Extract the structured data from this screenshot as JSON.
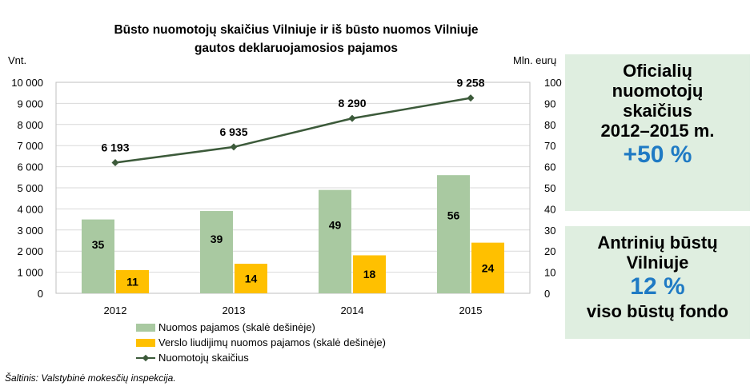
{
  "title_line1": "Būsto nuomotojų skaičius Vilniuje ir iš būsto nuomos Vilniuje",
  "title_line2": "gautos deklaruojamosios pajamos",
  "left_unit": "Vnt.",
  "right_unit": "Mln. eurų",
  "source": "Šaltinis: Valstybinė mokesčių inspekcija.",
  "colors": {
    "green_bar": "#a9c9a1",
    "yellow_bar": "#ffc000",
    "line": "#3c5a3a",
    "info_bg": "#dfeee0",
    "accent_blue": "#1f7ac4"
  },
  "box1": {
    "line1": "Oficialių",
    "line2": "nuomotojų",
    "line3": "skaičius",
    "line4": "2012–2015 m.",
    "big": "+50 %"
  },
  "box2": {
    "line1": "Antrinių būstų",
    "line2": "Vilniuje",
    "big": "12 %",
    "line3": "viso būstų fondo"
  },
  "chart_data": {
    "type": "bar",
    "categories": [
      "2012",
      "2013",
      "2014",
      "2015"
    ],
    "series": [
      {
        "name": "Nuomos pajamos (skalė dešinėje)",
        "axis": "right",
        "values": [
          35,
          39,
          49,
          56
        ],
        "labels": [
          "35",
          "39",
          "49",
          "56"
        ],
        "color": "#a9c9a1"
      },
      {
        "name": "Verslo liudijimų nuomos pajamos (skalė dešinėje)",
        "axis": "right",
        "values": [
          11,
          14,
          18,
          24
        ],
        "labels": [
          "11",
          "14",
          "18",
          "24"
        ],
        "color": "#ffc000"
      },
      {
        "name": "Nuomotojų skaičius",
        "axis": "left",
        "type": "line",
        "values": [
          6193,
          6935,
          8290,
          9258
        ],
        "labels": [
          "6 193",
          "6 935",
          "8 290",
          "9 258"
        ],
        "color": "#3c5a3a"
      }
    ],
    "left_axis": {
      "label": "Vnt.",
      "range": [
        0,
        10000
      ],
      "ticks": [
        "0",
        "1 000",
        "2 000",
        "3 000",
        "4 000",
        "5 000",
        "6 000",
        "7 000",
        "8 000",
        "9 000",
        "10 000"
      ]
    },
    "right_axis": {
      "label": "Mln. eurų",
      "range": [
        0,
        100
      ],
      "ticks": [
        "0",
        "10",
        "20",
        "30",
        "40",
        "50",
        "60",
        "70",
        "80",
        "90",
        "100"
      ]
    },
    "grid": true,
    "legend_position": "bottom-left"
  }
}
